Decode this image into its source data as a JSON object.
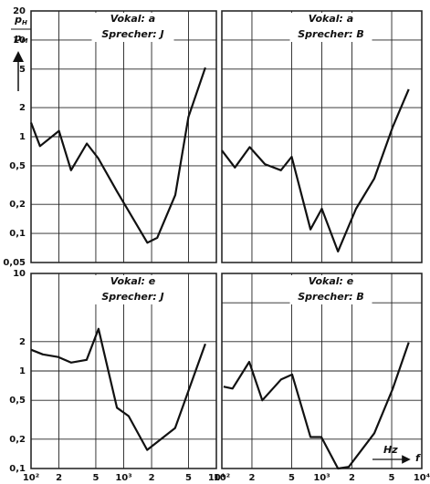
{
  "chart_data": [
    {
      "type": "line",
      "title": "Vokal: a",
      "subtitle": "Sprecher: J",
      "color": "#111111",
      "log_x": true,
      "log_y": true,
      "grid": true,
      "ylabel": {
        "numerator": {
          "base": "p",
          "sub": "H"
        },
        "denominator": {
          "base": "p",
          "sub": "M"
        }
      },
      "x": [
        100,
        125,
        200,
        270,
        400,
        530,
        850,
        1130,
        1800,
        2300,
        3600,
        5000,
        7600
      ],
      "values": [
        1.4,
        0.8,
        1.15,
        0.45,
        0.85,
        0.6,
        0.27,
        0.17,
        0.08,
        0.09,
        0.25,
        1.6,
        5.2
      ],
      "xlim": [
        100,
        10000
      ],
      "xticks": [
        100,
        200,
        500,
        1000,
        2000,
        5000,
        10000
      ],
      "xtick_labels": false,
      "ylim": [
        0.05,
        20
      ],
      "yticks": [
        20,
        10,
        5,
        2,
        1,
        {
          "value": 0.5,
          "label": "0,5"
        },
        {
          "value": 0.2,
          "label": "0,2"
        },
        {
          "value": 0.1,
          "label": "0,1"
        },
        {
          "value": 0.05,
          "label": "0,05"
        }
      ],
      "ytick_labels": true
    },
    {
      "type": "line",
      "title": "Vokal: a",
      "subtitle": "Sprecher: B",
      "color": "#111111",
      "log_x": true,
      "log_y": true,
      "grid": true,
      "x": [
        100,
        135,
        190,
        270,
        390,
        500,
        770,
        1000,
        1450,
        2200,
        3350,
        5100,
        7400
      ],
      "values": [
        0.72,
        0.48,
        0.78,
        0.52,
        0.45,
        0.62,
        0.11,
        0.18,
        0.065,
        0.18,
        0.37,
        1.25,
        3.1
      ],
      "xlim": [
        100,
        10000
      ],
      "xticks": [
        100,
        200,
        500,
        1000,
        2000,
        5000,
        10000
      ],
      "xtick_labels": false,
      "ylim": [
        0.05,
        20
      ],
      "yticks": [
        20,
        10,
        5,
        2,
        1,
        0.5,
        0.2,
        0.1,
        0.05
      ],
      "ytick_labels": false
    },
    {
      "type": "line",
      "title": "Vokal: e",
      "subtitle": "Sprecher: J",
      "color": "#111111",
      "log_x": true,
      "log_y": true,
      "grid": true,
      "x": [
        100,
        134,
        197,
        270,
        398,
        535,
        846,
        1130,
        1790,
        3590,
        7600
      ],
      "values": [
        1.65,
        1.48,
        1.39,
        1.22,
        1.3,
        2.7,
        0.42,
        0.345,
        0.155,
        0.26,
        1.9
      ],
      "xlim": [
        100,
        10000
      ],
      "xticks": [
        {
          "value": 100,
          "label": "10²"
        },
        {
          "value": 200,
          "label": "2"
        },
        {
          "value": 500,
          "label": "5"
        },
        {
          "value": 1000,
          "label": "10³"
        },
        {
          "value": 2000,
          "label": "2"
        },
        {
          "value": 5000,
          "label": "5"
        },
        {
          "value": 10000,
          "label": "10⁴"
        }
      ],
      "xtick_labels": true,
      "ylim": [
        0.1,
        10
      ],
      "yticks": [
        10,
        2,
        1,
        {
          "value": 0.5,
          "label": "0,5"
        },
        {
          "value": 0.2,
          "label": "0,2"
        },
        {
          "value": 0.1,
          "label": "0,1"
        }
      ],
      "ytick_labels": true
    },
    {
      "type": "line",
      "title": "Vokal: e",
      "subtitle": "Sprecher: B",
      "color": "#111111",
      "log_x": true,
      "log_y": true,
      "grid": true,
      "xlabel": {
        "unit": "Hz",
        "symbol": "f"
      },
      "x": [
        104,
        128,
        188,
        254,
        392,
        505,
        770,
        990,
        1450,
        1860,
        3350,
        5100,
        7400
      ],
      "values": [
        0.69,
        0.66,
        1.24,
        0.5,
        0.82,
        0.92,
        0.21,
        0.21,
        0.1,
        0.104,
        0.23,
        0.65,
        1.96
      ],
      "xlim": [
        100,
        10000
      ],
      "xticks": [
        {
          "value": 100,
          "label": "10²"
        },
        {
          "value": 200,
          "label": "2"
        },
        {
          "value": 500,
          "label": "5"
        },
        {
          "value": 1000,
          "label": "10³"
        },
        {
          "value": 2000,
          "label": "2"
        },
        {
          "value": 5000,
          "label": "5"
        },
        {
          "value": 10000,
          "label": "10⁴"
        }
      ],
      "xtick_labels": true,
      "ylim": [
        0.1,
        10
      ],
      "yticks": [
        10,
        5,
        2,
        1,
        0.5,
        0.2,
        0.1
      ],
      "ytick_labels": false
    }
  ]
}
